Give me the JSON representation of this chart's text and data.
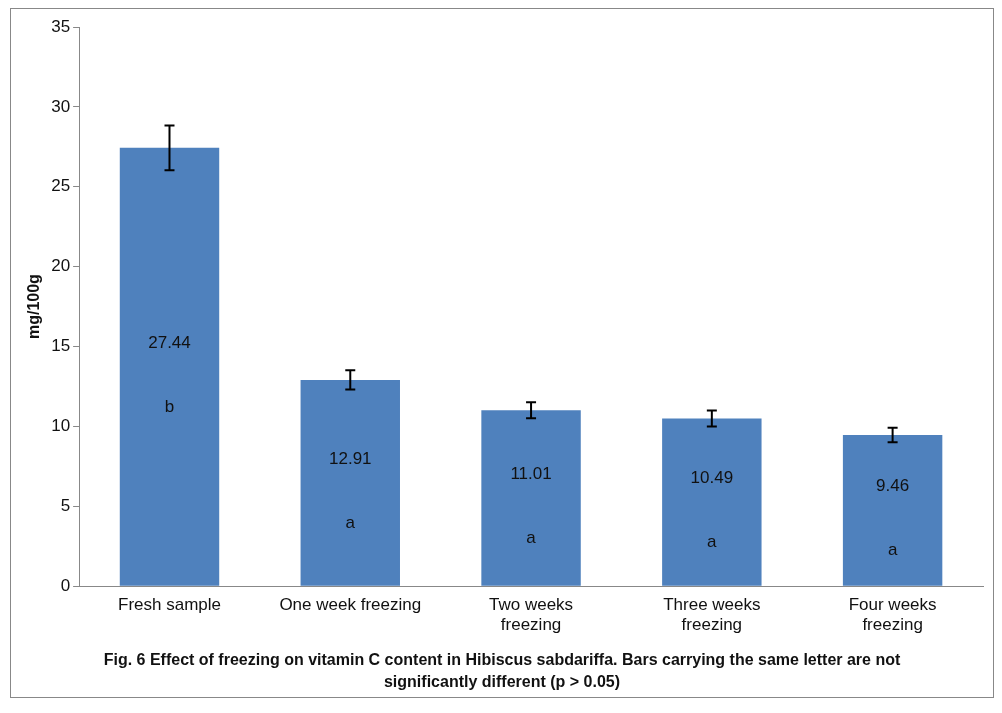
{
  "chart_data": {
    "type": "bar",
    "title": "Fig. 6 Effect of freezing on vitamin C content in Hibiscus sabdariffa. Bars carrying the same letter are not significantly different (p > 0.05)",
    "ylabel": "mg/100g",
    "categories": [
      "Fresh sample",
      "One week freezing",
      "Two weeks freezing",
      "Three weeks freezing",
      "Four weeks freezing"
    ],
    "values": [
      27.44,
      12.91,
      11.01,
      10.49,
      9.46
    ],
    "errors": [
      1.4,
      0.6,
      0.5,
      0.5,
      0.45
    ],
    "color": "#4f81bd",
    "data_labels": true,
    "grid": false,
    "legend": false,
    "ylim": [
      0,
      35
    ],
    "yticks": [
      0,
      5,
      10,
      15,
      20,
      25,
      30,
      35
    ],
    "annotations": [
      "b",
      "a",
      "a",
      "a",
      "a"
    ]
  }
}
